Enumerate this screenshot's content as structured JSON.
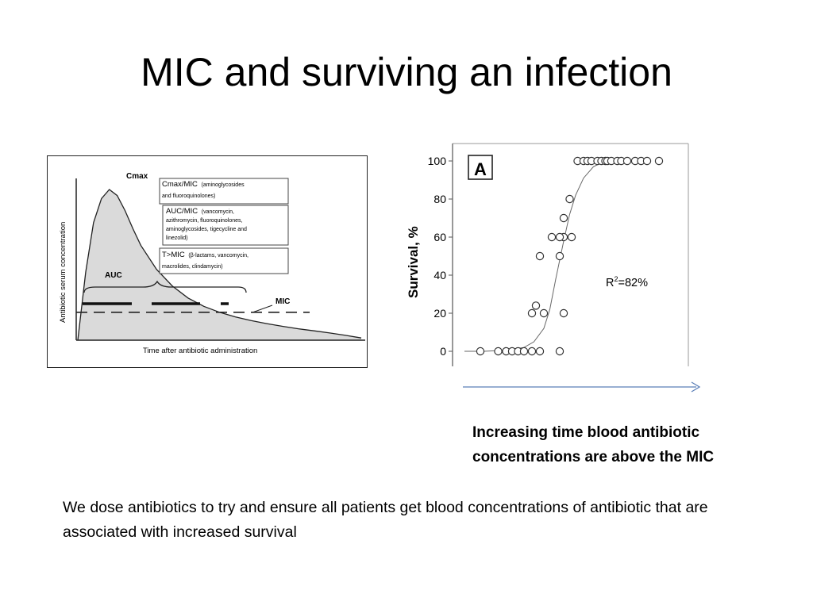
{
  "slide": {
    "title": "MIC and surviving an infection",
    "caption": "Increasing time blood antibiotic concentrations are above the MIC",
    "body": "We dose antibiotics to try and ensure all patients get blood concentrations of antibiotic that are associated with increased survival"
  },
  "chart_data": [
    {
      "type": "area",
      "title": "",
      "xlabel": "Time after antibiotic administration",
      "ylabel": "Antibiotic serum concentration",
      "annotations": {
        "peak": "Cmax",
        "area": "AUC",
        "threshold": "MIC",
        "box1_main": "Cmax/MIC",
        "box1_small_a": "(aminoglycosides",
        "box1_small_b": "and fluoroquinolones)",
        "box2_main": "AUC/MIC",
        "box2_small_a": "(vancomycin,",
        "box2_small_b": "azithromycin, fluoroquinolones,",
        "box2_small_c": "aminoglycosides, tigecycline and",
        "box2_small_d": "linezolid)",
        "box3_main": "T>MIC",
        "box3_small_a": "(β-lactams, vancomycin,",
        "box3_small_b": "macrolides, clindamycin)"
      },
      "curve": {
        "t": [
          0,
          0.5,
          1,
          1.5,
          2,
          2.5,
          3,
          3.5,
          4,
          5,
          6,
          7,
          8,
          9,
          10,
          11,
          12,
          13,
          14,
          15,
          16,
          17,
          18
        ],
        "c": [
          0,
          45,
          78,
          94,
          100,
          96,
          86,
          74,
          63,
          47,
          36,
          28,
          22.5,
          18.5,
          15.5,
          13,
          11,
          9.2,
          7.6,
          6.2,
          4.8,
          3.2,
          1.5
        ]
      },
      "mic_level": 18.5
    },
    {
      "type": "scatter",
      "title": "A",
      "xlabel": "",
      "ylabel": "Survival, %",
      "yticks": [
        "0",
        "20",
        "40",
        "60",
        "80",
        "100"
      ],
      "ylim": [
        0,
        100
      ],
      "xlim": [
        0,
        100
      ],
      "annotation_r2_base": "R",
      "annotation_r2_sup": "2",
      "annotation_r2_value": "=82%",
      "points": {
        "x": [
          8,
          17,
          21,
          24,
          27,
          30,
          34,
          38,
          48,
          34,
          36,
          40,
          50,
          38,
          44,
          48,
          50,
          50,
          48,
          54,
          53,
          57,
          60,
          62,
          64,
          67,
          69,
          71,
          72,
          74,
          77,
          79,
          82,
          86,
          89,
          92,
          98
        ],
        "y": [
          0,
          0,
          0,
          0,
          0,
          0,
          0,
          0,
          0,
          20,
          24,
          20,
          20,
          50,
          60,
          50,
          70,
          60,
          60,
          60,
          80,
          100,
          100,
          100,
          100,
          100,
          100,
          100,
          100,
          100,
          100,
          100,
          100,
          100,
          100,
          100,
          100
        ]
      },
      "fit": {
        "x": [
          0,
          10,
          20,
          30,
          35,
          40,
          43,
          46,
          48,
          50,
          53,
          56,
          60,
          65,
          70,
          80,
          90
        ],
        "y": [
          0,
          0,
          0.5,
          2,
          5,
          12,
          22,
          38,
          48,
          58,
          72,
          82,
          91,
          97,
          99.5,
          100,
          100
        ]
      }
    }
  ],
  "arrow": {
    "direction": "right",
    "color": "#5b7fb8"
  }
}
